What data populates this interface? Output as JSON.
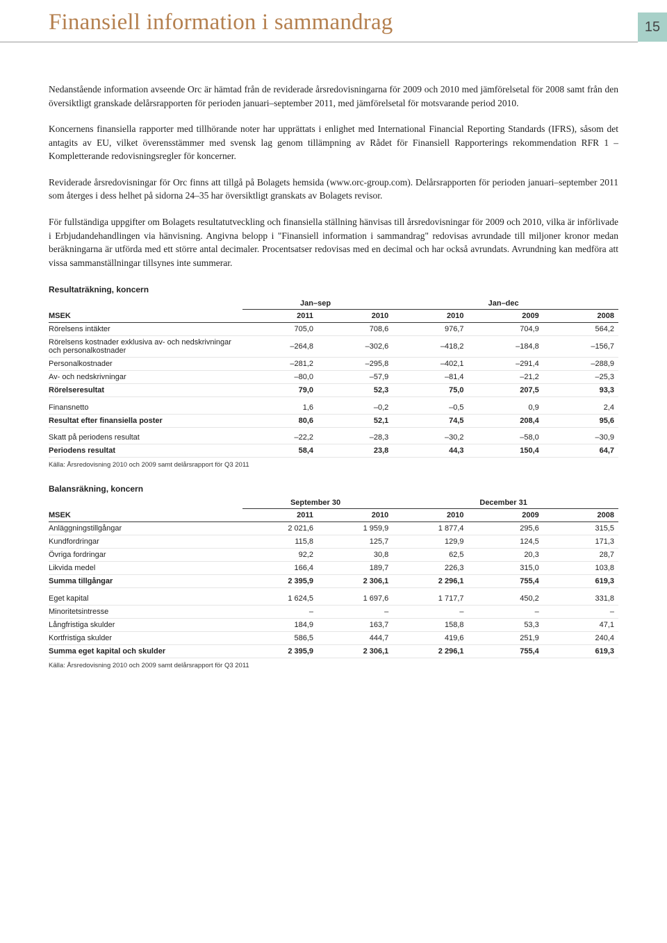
{
  "page_number": "15",
  "title": "Finansiell information i sammandrag",
  "paragraphs": [
    "Nedanstående information avseende Orc är hämtad från de reviderade årsredovisningarna för 2009 och 2010 med jämförelsetal för 2008 samt från den översiktligt granskade delårsrapporten för perioden januari–september 2011, med jämförelsetal för motsvarande period 2010.",
    "Koncernens finansiella rapporter med tillhörande noter har upprättats i enlighet med International Financial Reporting Standards (IFRS), såsom det antagits av EU, vilket överensstämmer med svensk lag genom tillämpning av Rådet för Finansiell Rapporterings rekommendation RFR 1 – Kompletterande redovisningsregler för koncerner.",
    "Reviderade årsredovisningar för Orc finns att tillgå på Bolagets hemsida (www.orc-group.com). Delårsrapporten för perioden januari–september 2011 som återges i dess helhet på sidorna 24–35 har översiktligt granskats av Bolagets revisor.",
    "För fullständiga uppgifter om Bolagets resultatutveckling och finansiella ställning hänvisas till årsredovisningar för 2009 och 2010, vilka är införlivade i Erbjudandehandlingen via hänvisning. Angivna belopp i \"Finansiell information i sammandrag\" redovisas avrundade till miljoner kronor medan beräkningarna är utförda med ett större antal decimaler. Procentsatser redovisas med en decimal och har också avrundats. Avrundning kan medföra att vissa sammanställningar tillsynes inte summerar."
  ],
  "table1": {
    "title": "Resultaträkning, koncern",
    "period_headers": [
      "Jan–sep",
      "Jan–dec"
    ],
    "msek": "MSEK",
    "years": [
      "2011",
      "2010",
      "2010",
      "2009",
      "2008"
    ],
    "rows": [
      {
        "label": "Rörelsens intäkter",
        "vals": [
          "705,0",
          "708,6",
          "976,7",
          "704,9",
          "564,2"
        ],
        "cls": ""
      },
      {
        "label": "Rörelsens kostnader exklusiva av- och nedskrivningar och personalkostnader",
        "vals": [
          "–264,8",
          "–302,6",
          "–418,2",
          "–184,8",
          "–156,7"
        ],
        "cls": ""
      },
      {
        "label": "Personalkostnader",
        "vals": [
          "–281,2",
          "–295,8",
          "–402,1",
          "–291,4",
          "–288,9"
        ],
        "cls": ""
      },
      {
        "label": "Av- och nedskrivningar",
        "vals": [
          "–80,0",
          "–57,9",
          "–81,4",
          "–21,2",
          "–25,3"
        ],
        "cls": ""
      },
      {
        "label": "Rörelseresultat",
        "vals": [
          "79,0",
          "52,3",
          "75,0",
          "207,5",
          "93,3"
        ],
        "cls": "bold"
      },
      {
        "label": "",
        "vals": [
          "",
          "",
          "",
          "",
          ""
        ],
        "cls": "spacer"
      },
      {
        "label": "Finansnetto",
        "vals": [
          "1,6",
          "–0,2",
          "–0,5",
          "0,9",
          "2,4"
        ],
        "cls": ""
      },
      {
        "label": "Resultat efter finansiella poster",
        "vals": [
          "80,6",
          "52,1",
          "74,5",
          "208,4",
          "95,6"
        ],
        "cls": "bold"
      },
      {
        "label": "",
        "vals": [
          "",
          "",
          "",
          "",
          ""
        ],
        "cls": "spacer"
      },
      {
        "label": "Skatt på periodens resultat",
        "vals": [
          "–22,2",
          "–28,3",
          "–30,2",
          "–58,0",
          "–30,9"
        ],
        "cls": ""
      },
      {
        "label": "Periodens resultat",
        "vals": [
          "58,4",
          "23,8",
          "44,3",
          "150,4",
          "64,7"
        ],
        "cls": "bold"
      }
    ],
    "source": "Källa: Årsredovisning 2010 och 2009 samt delårsrapport för Q3 2011"
  },
  "table2": {
    "title": "Balansräkning, koncern",
    "period_headers": [
      "September 30",
      "December 31"
    ],
    "msek": "MSEK",
    "years": [
      "2011",
      "2010",
      "2010",
      "2009",
      "2008"
    ],
    "rows": [
      {
        "label": "Anläggningstillgångar",
        "vals": [
          "2 021,6",
          "1 959,9",
          "1 877,4",
          "295,6",
          "315,5"
        ],
        "cls": ""
      },
      {
        "label": "Kundfordringar",
        "vals": [
          "115,8",
          "125,7",
          "129,9",
          "124,5",
          "171,3"
        ],
        "cls": ""
      },
      {
        "label": "Övriga fordringar",
        "vals": [
          "92,2",
          "30,8",
          "62,5",
          "20,3",
          "28,7"
        ],
        "cls": ""
      },
      {
        "label": "Likvida medel",
        "vals": [
          "166,4",
          "189,7",
          "226,3",
          "315,0",
          "103,8"
        ],
        "cls": ""
      },
      {
        "label": "Summa tillgångar",
        "vals": [
          "2 395,9",
          "2 306,1",
          "2 296,1",
          "755,4",
          "619,3"
        ],
        "cls": "bold"
      },
      {
        "label": "",
        "vals": [
          "",
          "",
          "",
          "",
          ""
        ],
        "cls": "spacer"
      },
      {
        "label": "Eget kapital",
        "vals": [
          "1 624,5",
          "1 697,6",
          "1 717,7",
          "450,2",
          "331,8"
        ],
        "cls": ""
      },
      {
        "label": "Minoritetsintresse",
        "vals": [
          "–",
          "–",
          "–",
          "–",
          "–"
        ],
        "cls": ""
      },
      {
        "label": "Långfristiga skulder",
        "vals": [
          "184,9",
          "163,7",
          "158,8",
          "53,3",
          "47,1"
        ],
        "cls": ""
      },
      {
        "label": "Kortfristiga skulder",
        "vals": [
          "586,5",
          "444,7",
          "419,6",
          "251,9",
          "240,4"
        ],
        "cls": ""
      },
      {
        "label": "Summa eget kapital och skulder",
        "vals": [
          "2 395,9",
          "2 306,1",
          "2 296,1",
          "755,4",
          "619,3"
        ],
        "cls": "bold"
      }
    ],
    "source": "Källa: Årsredovisning 2010 och 2009 samt delårsrapport för Q3 2011"
  }
}
